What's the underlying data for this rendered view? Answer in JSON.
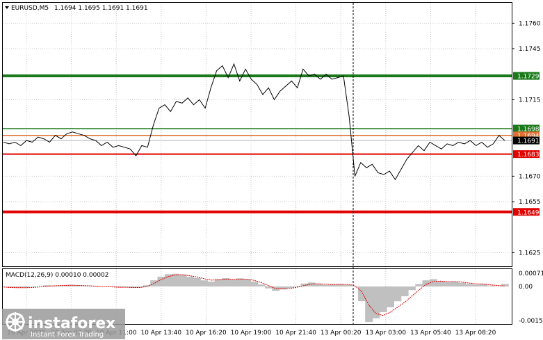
{
  "header": {
    "symbol": "EURUSD,M5",
    "ohlc": "1.1694 1.1695 1.1691 1.1691",
    "macd_title": "MACD(12,26,9) 0.00010 0.00002"
  },
  "logo": {
    "brand": "instaforex",
    "tagline": "Instant Forex Trading"
  },
  "colors": {
    "background": "#ffffff",
    "price_line": "#000000",
    "green_level": "#1a7a1a",
    "red_level": "#e00000",
    "current_price_box": "#000000",
    "macd_histogram": "#c0c0c0",
    "macd_signal": "#e00000",
    "grid": "#c8c8c8"
  },
  "chart_data": {
    "type": "line",
    "price_axis": {
      "range": [
        1.1617,
        1.1772
      ],
      "ticks": [
        "1.1760",
        "1.1745",
        "1.1715",
        "1.1670",
        "1.1655",
        "1.1625"
      ]
    },
    "time_axis": {
      "labels": [
        "10 Apr 2025",
        "10 Apr 08:20",
        "10 Apr 11:00",
        "10 Apr 13:40",
        "10 Apr 16:20",
        "10 Apr 19:00",
        "10 Apr 21:40",
        "13 Apr 00:20",
        "13 Apr 03:00",
        "13 Apr 05:40",
        "13 Apr 08:20"
      ]
    },
    "levels": [
      {
        "value": 1.1729,
        "label": "1.1729",
        "color": "#1a7a1a",
        "weight": "thick"
      },
      {
        "value": 1.1698,
        "label": "1.1698",
        "color": "#1a7a1a",
        "weight": "thin"
      },
      {
        "value": 1.1694,
        "label": "1.1694",
        "color": "#e07030",
        "weight": "thin"
      },
      {
        "value": 1.1683,
        "label": "1.1683",
        "color": "#e00000",
        "weight": "medium"
      },
      {
        "value": 1.1649,
        "label": "1.1649",
        "color": "#e00000",
        "weight": "thick"
      }
    ],
    "current_price": "1.1691",
    "series": [
      {
        "values": [
          1.169,
          1.1689,
          1.169,
          1.1688,
          1.1691,
          1.169,
          1.1693,
          1.1692,
          1.169,
          1.1694,
          1.1692,
          1.1695,
          1.1696,
          1.1695,
          1.1694,
          1.1692,
          1.1691,
          1.1688,
          1.169,
          1.1687,
          1.1688,
          1.1687,
          1.1686,
          1.1682,
          1.1688,
          1.1687,
          1.17,
          1.171,
          1.1712,
          1.1708,
          1.1714,
          1.1713,
          1.1716,
          1.1712,
          1.1715,
          1.171,
          1.1722,
          1.1732,
          1.1735,
          1.1728,
          1.1736,
          1.1726,
          1.1733,
          1.1727,
          1.1724,
          1.1718,
          1.1722,
          1.1715,
          1.172,
          1.1723,
          1.1726,
          1.1722,
          1.1733,
          1.1729,
          1.173,
          1.1727,
          1.173,
          1.1727,
          1.1728,
          1.1729,
          1.1705,
          1.167,
          1.1678,
          1.1675,
          1.1677,
          1.1672,
          1.1671,
          1.1673,
          1.1668,
          1.1674,
          1.168,
          1.1684,
          1.1688,
          1.1685,
          1.169,
          1.1688,
          1.1686,
          1.1689,
          1.1688,
          1.169,
          1.1689,
          1.1691,
          1.1688,
          1.169,
          1.1687,
          1.1689,
          1.1694,
          1.1691
        ]
      }
    ],
    "macd": {
      "axis_ticks": [
        "0.00071",
        "0.00",
        "-0.00153"
      ],
      "range": [
        -0.00153,
        0.00071
      ],
      "histogram": [
        0.0,
        -5e-05,
        -6e-05,
        -4e-05,
        -2e-05,
        0.0,
        5e-05,
        3e-05,
        4e-05,
        6e-05,
        5e-05,
        4e-05,
        2e-05,
        -1e-05,
        0.0,
        -2e-05,
        -4e-05,
        -3e-05,
        -6e-05,
        -4e-05,
        5e-05,
        0.00025,
        0.0004,
        0.0005,
        0.00052,
        0.00048,
        0.0004,
        0.00035,
        0.00025,
        0.0002,
        0.0003,
        0.00034,
        0.00028,
        0.00033,
        0.0003,
        0.0002,
        8e-05,
        -8e-05,
        -0.00018,
        -0.00012,
        -6e-05,
        3e-05,
        0.00012,
        0.00016,
        0.0001,
        6e-05,
        8e-05,
        0.0001,
        6e-05,
        2e-05,
        -0.0006,
        -0.00145,
        -0.0013,
        -0.00105,
        -0.00085,
        -0.0006,
        -0.0004,
        -0.00015,
        0.0001,
        0.00025,
        0.0003,
        0.00022,
        0.00018,
        0.0002,
        0.00015,
        0.0001,
        8e-05,
        0.0001,
        4e-05,
        2e-05,
        0.0001
      ],
      "signal": [
        -2e-05,
        -4e-05,
        -5e-05,
        -5e-05,
        -4e-05,
        -2e-05,
        1e-05,
        3e-05,
        4e-05,
        5e-05,
        5e-05,
        4e-05,
        3e-05,
        1e-05,
        0.0,
        -1e-05,
        -3e-05,
        -3e-05,
        -4e-05,
        -4e-05,
        0.0,
        0.00012,
        0.00028,
        0.0004,
        0.00047,
        0.00048,
        0.00044,
        0.00039,
        0.00032,
        0.00026,
        0.00027,
        0.0003,
        0.00029,
        0.0003,
        0.0003,
        0.00025,
        0.00016,
        4e-05,
        -8e-05,
        -0.0001,
        -8e-05,
        -3e-05,
        4e-05,
        0.0001,
        0.00011,
        9e-05,
        8e-05,
        9e-05,
        8e-05,
        5e-05,
        -0.0002,
        -0.00075,
        -0.0011,
        -0.00118,
        -0.00105,
        -0.00085,
        -0.00065,
        -0.0004,
        -0.00015,
        8e-05,
        0.0002,
        0.00022,
        0.0002,
        0.0002,
        0.00018,
        0.00014,
        0.00011,
        0.0001,
        7e-05,
        4e-05,
        2e-05
      ]
    }
  }
}
